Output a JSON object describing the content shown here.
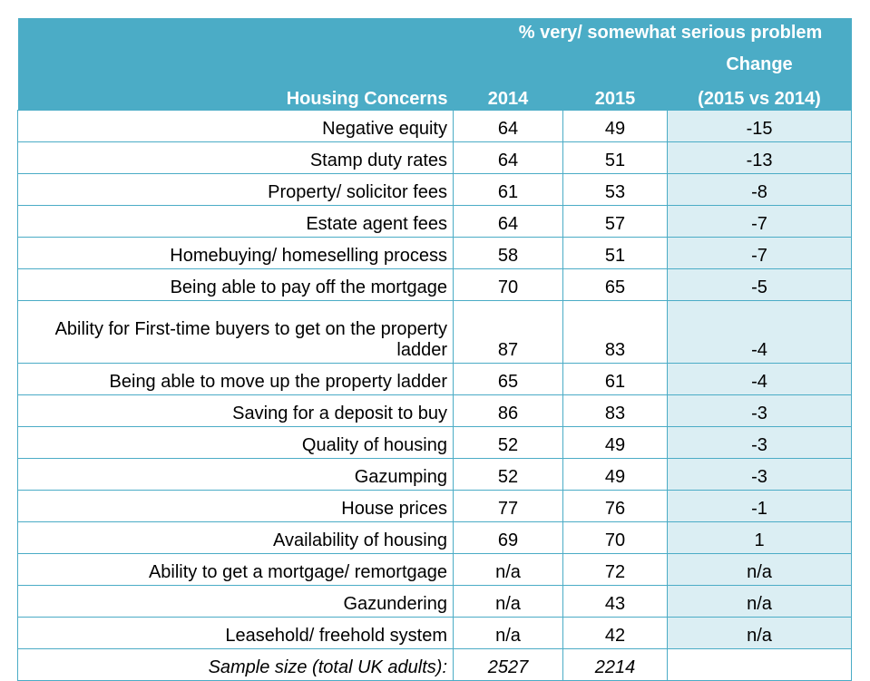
{
  "header": {
    "group_title": "% very/ somewhat serious problem",
    "concern_label": "Housing Concerns",
    "year_2014": "2014",
    "year_2015": "2015",
    "change_line1": "Change",
    "change_line2": "(2015 vs 2014)"
  },
  "rows": [
    {
      "concern": "Negative equity",
      "y2014": "64",
      "y2015": "49",
      "change": "-15"
    },
    {
      "concern": "Stamp duty rates",
      "y2014": "64",
      "y2015": "51",
      "change": "-13"
    },
    {
      "concern": "Property/ solicitor fees",
      "y2014": "61",
      "y2015": "53",
      "change": "-8"
    },
    {
      "concern": "Estate agent fees",
      "y2014": "64",
      "y2015": "57",
      "change": "-7"
    },
    {
      "concern": "Homebuying/ homeselling process",
      "y2014": "58",
      "y2015": "51",
      "change": "-7"
    },
    {
      "concern": "Being able to pay off the mortgage",
      "y2014": "70",
      "y2015": "65",
      "change": "-5"
    },
    {
      "concern": "Ability for First-time buyers to get on the property ladder",
      "y2014": "87",
      "y2015": "83",
      "change": "-4"
    },
    {
      "concern": "Being able to move up the property ladder",
      "y2014": "65",
      "y2015": "61",
      "change": "-4"
    },
    {
      "concern": "Saving for a deposit to buy",
      "y2014": "86",
      "y2015": "83",
      "change": "-3"
    },
    {
      "concern": "Quality of housing",
      "y2014": "52",
      "y2015": "49",
      "change": "-3"
    },
    {
      "concern": "Gazumping",
      "y2014": "52",
      "y2015": "49",
      "change": "-3"
    },
    {
      "concern": "House prices",
      "y2014": "77",
      "y2015": "76",
      "change": "-1"
    },
    {
      "concern": "Availability of housing",
      "y2014": "69",
      "y2015": "70",
      "change": "1"
    },
    {
      "concern": "Ability to get a mortgage/ remortgage",
      "y2014": "n/a",
      "y2015": "72",
      "change": "n/a"
    },
    {
      "concern": "Gazundering",
      "y2014": "n/a",
      "y2015": "43",
      "change": "n/a"
    },
    {
      "concern": "Leasehold/ freehold system",
      "y2014": "n/a",
      "y2015": "42",
      "change": "n/a"
    }
  ],
  "sample": {
    "label": "Sample size (total UK adults):",
    "y2014": "2527",
    "y2015": "2214"
  },
  "colors": {
    "header_bg": "#4bacc6",
    "header_text": "#ffffff",
    "change_col_bg": "#dbeef3",
    "grid_line": "#4bacc6"
  }
}
